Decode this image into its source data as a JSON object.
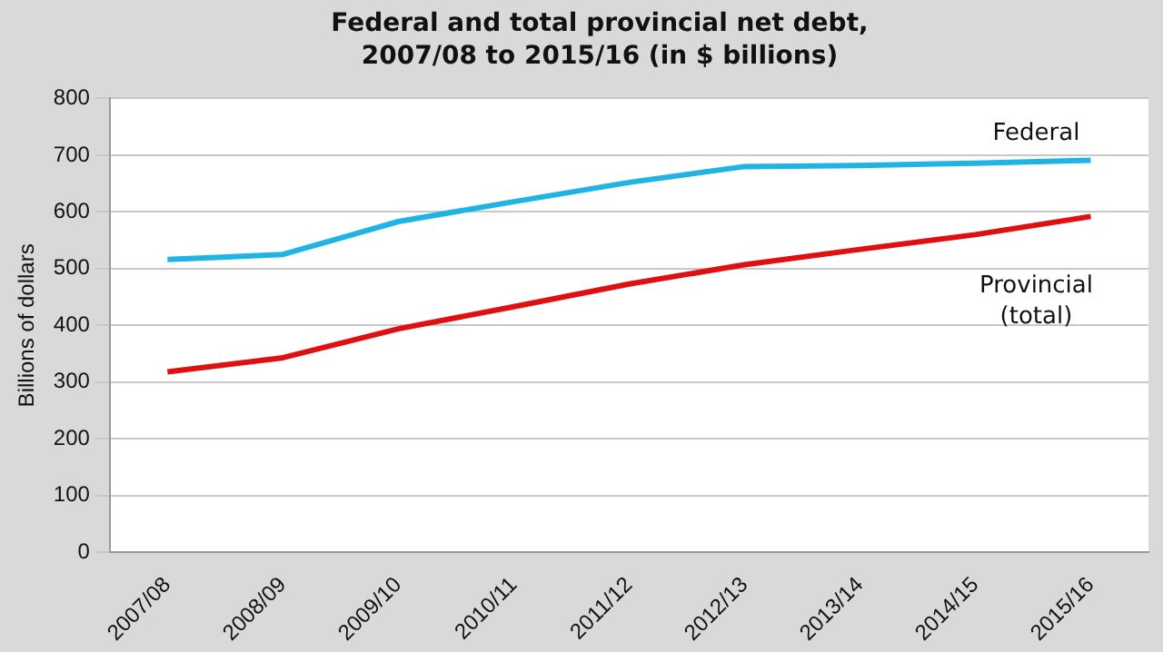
{
  "chart_data": {
    "type": "line",
    "title": "Federal and total provincial net debt, 2007/08 to 2015/16 (in $ billions)",
    "ylabel": "Billions of dollars",
    "categories": [
      "2007/08",
      "2008/09",
      "2009/10",
      "2010/11",
      "2011/12",
      "2012/13",
      "2013/14",
      "2014/15",
      "2015/16"
    ],
    "series": [
      {
        "name": "Federal",
        "color": "#1fb4e4",
        "values": [
          516,
          525,
          583,
          618,
          652,
          680,
          682,
          686,
          691
        ]
      },
      {
        "name": "Provincial (total)",
        "color": "#e01010",
        "values": [
          318,
          343,
          394,
          433,
          473,
          507,
          534,
          560,
          592
        ]
      }
    ],
    "ylim": [
      0,
      800
    ],
    "yticks": [
      0,
      100,
      200,
      300,
      400,
      500,
      600,
      700,
      800
    ],
    "grid": "y",
    "legend": false,
    "marker": "none",
    "line_style": "solid"
  }
}
